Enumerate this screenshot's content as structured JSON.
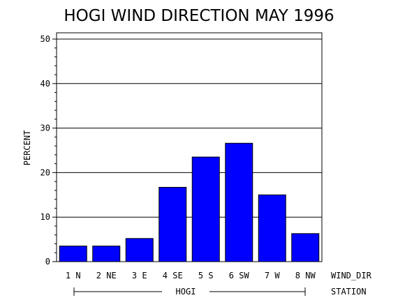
{
  "chart_data": {
    "type": "bar",
    "title": "HOGI WIND DIRECTION MAY 1996",
    "ylabel": "PERCENT",
    "xlabel": "WIND_DIR",
    "group_label": "HOGI",
    "group_axis_label": "STATION",
    "ylim": [
      0,
      50
    ],
    "yticks": [
      "0",
      "10",
      "20",
      "30",
      "40",
      "50"
    ],
    "grid": true,
    "categories": [
      "1 N",
      "2 NE",
      "3 E",
      "4 SE",
      "5 S",
      "6 SW",
      "7 W",
      "8 NW"
    ],
    "values": [
      3.5,
      3.5,
      5.2,
      16.7,
      23.5,
      26.6,
      15.0,
      6.3
    ],
    "bar_color": "#0000ff"
  }
}
